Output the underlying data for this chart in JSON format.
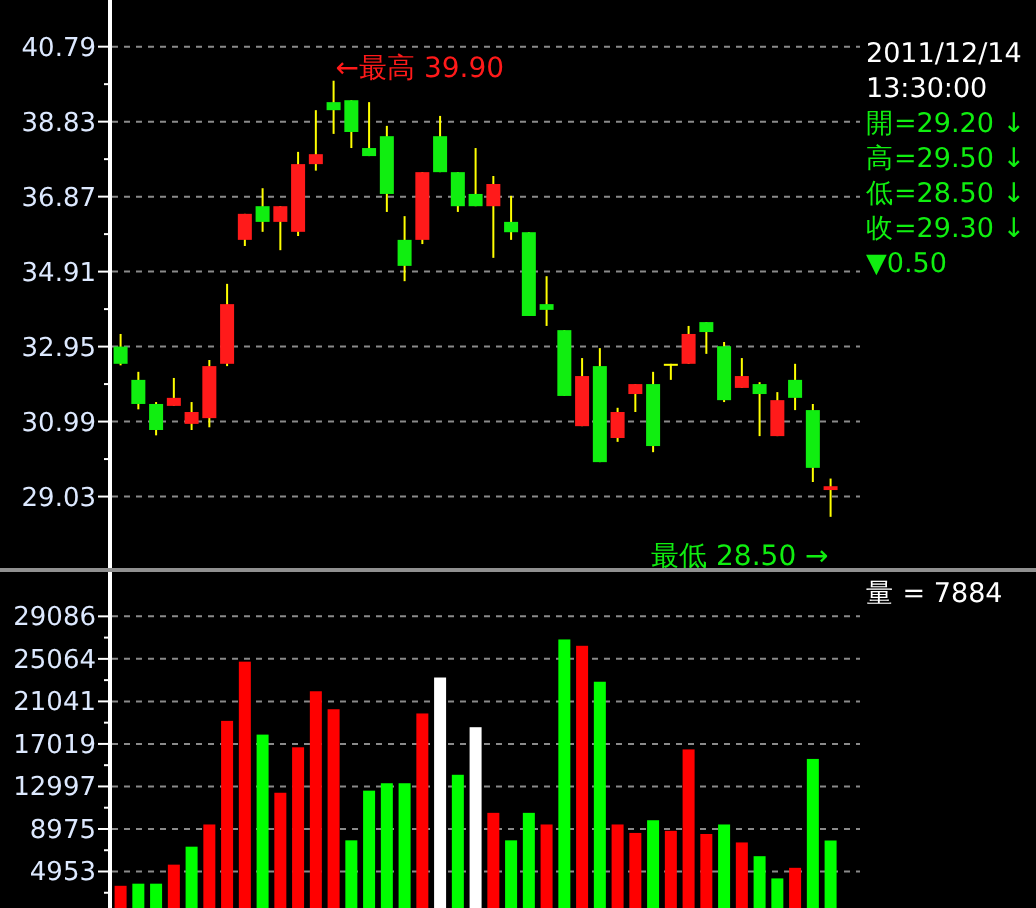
{
  "chart_data": [
    {
      "type": "candlestick",
      "categories": [
        null,
        null,
        null,
        null,
        null,
        null,
        null,
        null,
        null,
        null,
        null,
        null,
        null,
        null,
        null,
        null,
        null,
        null,
        null,
        null,
        null,
        null,
        null,
        null,
        null,
        null,
        null,
        null,
        null,
        null,
        null,
        null,
        null,
        null,
        null,
        null,
        null,
        null,
        null,
        null,
        null
      ],
      "ohlc": [
        [
          32.95,
          33.28,
          32.46,
          32.5
        ],
        [
          32.08,
          32.29,
          31.31,
          31.45
        ],
        [
          31.45,
          31.5,
          30.63,
          30.77
        ],
        [
          31.4,
          32.13,
          31.4,
          31.61
        ],
        [
          30.93,
          31.5,
          30.77,
          31.24
        ],
        [
          31.08,
          32.6,
          30.84,
          32.44
        ],
        [
          32.5,
          34.59,
          32.44,
          34.06
        ],
        [
          35.74,
          36.42,
          35.58,
          36.42
        ],
        [
          36.62,
          37.09,
          35.95,
          36.21
        ],
        [
          36.21,
          36.62,
          35.47,
          36.62
        ],
        [
          35.95,
          38.04,
          35.84,
          37.72
        ],
        [
          37.72,
          39.13,
          37.55,
          37.98
        ],
        [
          39.34,
          39.9,
          38.51,
          39.13
        ],
        [
          39.39,
          39.39,
          38.14,
          38.56
        ],
        [
          38.14,
          39.34,
          37.93,
          37.93
        ],
        [
          38.45,
          38.72,
          36.47,
          36.94
        ],
        [
          35.74,
          36.36,
          34.66,
          35.06
        ],
        [
          35.74,
          37.51,
          35.63,
          37.51
        ],
        [
          38.45,
          38.98,
          37.51,
          37.51
        ],
        [
          37.51,
          37.51,
          36.47,
          36.62
        ],
        [
          36.94,
          38.14,
          36.62,
          36.62
        ],
        [
          36.62,
          37.41,
          35.27,
          37.2
        ],
        [
          36.21,
          36.89,
          35.74,
          35.94
        ],
        [
          35.94,
          35.94,
          33.75,
          33.75
        ],
        [
          34.06,
          34.79,
          33.49,
          33.91
        ],
        [
          33.38,
          33.38,
          31.66,
          31.66
        ],
        [
          30.87,
          32.65,
          30.87,
          32.18
        ],
        [
          32.44,
          32.91,
          29.93,
          29.93
        ],
        [
          30.56,
          31.35,
          30.46,
          31.24
        ],
        [
          31.71,
          31.97,
          31.24,
          31.97
        ],
        [
          31.97,
          32.29,
          30.19,
          30.35
        ],
        [
          32.5,
          32.5,
          32.08,
          32.5
        ],
        [
          32.5,
          33.49,
          32.5,
          33.28
        ],
        [
          33.59,
          33.59,
          32.76,
          33.33
        ],
        [
          32.96,
          33.07,
          31.5,
          31.55
        ],
        [
          31.87,
          32.65,
          31.87,
          32.18
        ],
        [
          31.97,
          32.02,
          30.61,
          31.71
        ],
        [
          30.61,
          31.76,
          30.61,
          31.55
        ],
        [
          32.08,
          32.5,
          31.29,
          31.61
        ],
        [
          31.29,
          31.45,
          29.41,
          29.78
        ],
        [
          29.2,
          29.5,
          28.5,
          29.3
        ]
      ],
      "ylim": [
        27.11,
        42.01
      ],
      "yticks": [
        29.03,
        {
          "value": 30.01,
          "label": null
        },
        30.99,
        {
          "value": 31.97,
          "label": null
        },
        32.95,
        {
          "value": 33.93,
          "label": null
        },
        34.91,
        {
          "value": 35.89,
          "label": null
        },
        36.87,
        {
          "value": 37.85,
          "label": null
        },
        38.83,
        {
          "value": 39.81,
          "label": null
        },
        40.79
      ],
      "grid": "y",
      "annotations": [
        "←最高 39.90",
        "最低 28.50 →",
        "2011/12/14",
        "13:30:00",
        "開=29.20 ↓",
        "高=29.50 ↓",
        "低=28.50 ↓",
        "收=29.30 ↓",
        "▼0.50"
      ]
    },
    {
      "type": "bar",
      "categories": [
        null,
        null,
        null,
        null,
        null,
        null,
        null,
        null,
        null,
        null,
        null,
        null,
        null,
        null,
        null,
        null,
        null,
        null,
        null,
        null,
        null,
        null,
        null,
        null,
        null,
        null,
        null,
        null,
        null,
        null,
        null,
        null,
        null,
        null,
        null,
        null,
        null,
        null,
        null,
        null,
        null
      ],
      "values": [
        3600,
        3800,
        3800,
        5600,
        7300,
        9400,
        19200,
        24800,
        17900,
        12400,
        16700,
        22000,
        20300,
        7900,
        12600,
        13300,
        13300,
        19900,
        23300,
        14100,
        18600,
        10500,
        7900,
        10500,
        9400,
        26900,
        26300,
        22900,
        9400,
        8600,
        9800,
        8800,
        16500,
        8500,
        9400,
        7700,
        6400,
        4300,
        5300,
        15600,
        7884
      ],
      "colors": [
        "#ff0000",
        "#00ff00",
        "#00ff00",
        "#ff0000",
        "#00ff00",
        "#ff0000",
        "#ff0000",
        "#ff0000",
        "#00ff00",
        "#ff0000",
        "#ff0000",
        "#ff0000",
        "#ff0000",
        "#00ff00",
        "#00ff00",
        "#00ff00",
        "#00ff00",
        "#ff0000",
        "#ffffff",
        "#00ff00",
        "#ffffff",
        "#ff0000",
        "#00ff00",
        "#00ff00",
        "#ff0000",
        "#00ff00",
        "#ff0000",
        "#00ff00",
        "#ff0000",
        "#ff0000",
        "#00ff00",
        "#ff0000",
        "#ff0000",
        "#ff0000",
        "#00ff00",
        "#ff0000",
        "#00ff00",
        "#00ff00",
        "#ff0000",
        "#00ff00",
        "#00ff00"
      ],
      "ylim": [
        1500,
        33280
      ],
      "yticks": [
        {
          "value": 2942,
          "label": null
        },
        4953,
        {
          "value": 6964,
          "label": null
        },
        8975,
        {
          "value": 10986,
          "label": null
        },
        12997,
        {
          "value": 15008,
          "label": null
        },
        17019,
        {
          "value": 19030,
          "label": null
        },
        21041,
        {
          "value": 23053,
          "label": null
        },
        25064,
        {
          "value": 27075,
          "label": null
        },
        29086
      ],
      "grid": "y",
      "annotations": [
        "量 = 7884"
      ]
    }
  ]
}
